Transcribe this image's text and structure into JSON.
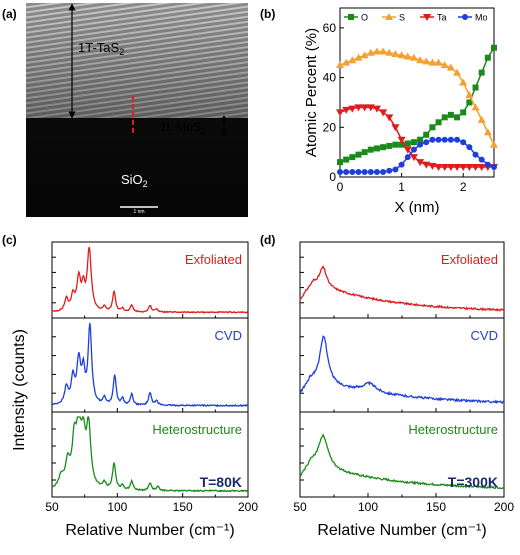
{
  "panel_labels": {
    "a": "(a)",
    "b": "(b)",
    "c": "(c)",
    "d": "(d)"
  },
  "tem": {
    "label_top": "1T-TaS",
    "label_top_sub": "2",
    "label_mid": "1L MoS",
    "label_mid_sub": "2",
    "label_bottom": "SiO",
    "label_bottom_sub": "2",
    "scalebar": "1 nm"
  },
  "colors": {
    "red": "#e31a1c",
    "blue": "#1f3fdc",
    "green": "#1a8a1a",
    "orange": "#f5a030",
    "navy": "#1a2a6e"
  },
  "chart_data": [
    {
      "id": "b",
      "type": "line",
      "ylabel": "Atomic Percent (%)",
      "xlabel": "X (nm)",
      "xlim": [
        0,
        2.5
      ],
      "ylim": [
        0,
        68
      ],
      "xticks": [
        0,
        1,
        2
      ],
      "yticks": [
        0,
        20,
        40,
        60
      ],
      "x": [
        0.0,
        0.1,
        0.2,
        0.3,
        0.4,
        0.5,
        0.6,
        0.7,
        0.8,
        0.9,
        1.0,
        1.1,
        1.2,
        1.3,
        1.4,
        1.5,
        1.6,
        1.7,
        1.8,
        1.9,
        2.0,
        2.1,
        2.2,
        2.3,
        2.4,
        2.5
      ],
      "series": [
        {
          "name": "O",
          "marker": "square",
          "color": "#1a8a1a",
          "values": [
            6,
            7,
            8,
            9,
            10,
            11,
            11.5,
            12,
            12.5,
            13,
            13,
            13.5,
            14,
            15,
            17,
            20,
            22,
            24,
            25,
            24,
            26,
            30,
            36,
            42,
            48,
            52
          ]
        },
        {
          "name": "S",
          "marker": "triangle-up",
          "color": "#f5a030",
          "values": [
            45,
            46,
            47,
            48,
            49,
            50,
            50.5,
            50.5,
            50,
            49.5,
            49,
            48.5,
            48,
            47,
            46.5,
            46,
            46,
            45,
            44,
            42,
            38,
            33,
            28,
            23,
            18,
            13
          ]
        },
        {
          "name": "Ta",
          "marker": "triangle-down",
          "color": "#e31a1c",
          "values": [
            26,
            27,
            27.5,
            28,
            28,
            28,
            27.5,
            26,
            24,
            20,
            15,
            11,
            8,
            6,
            5,
            4.5,
            4,
            4,
            4,
            4,
            4,
            4,
            4,
            4,
            4,
            4
          ]
        },
        {
          "name": "Mo",
          "marker": "circle",
          "color": "#1f3fdc",
          "values": [
            2,
            2,
            2,
            2,
            2,
            2,
            2,
            2,
            2.5,
            3,
            5,
            8,
            11,
            13,
            14,
            15,
            15,
            15,
            15,
            15,
            14,
            12,
            9,
            7,
            5,
            4
          ]
        }
      ]
    },
    {
      "id": "c",
      "type": "line",
      "xlabel": "Relative Number (cm⁻¹)",
      "ylabel": "Intensity (counts)",
      "xlim": [
        50,
        200
      ],
      "xticks": [
        50,
        100,
        150,
        200
      ],
      "annotation": "T=80K",
      "series": [
        {
          "name": "Exfoliated",
          "color": "#e31a1c"
        },
        {
          "name": "CVD",
          "color": "#1f3fdc"
        },
        {
          "name": "Heterostructure",
          "color": "#1a8a1a"
        }
      ]
    },
    {
      "id": "d",
      "type": "line",
      "xlabel": "Relative Number (cm⁻¹)",
      "xlim": [
        50,
        200
      ],
      "xticks": [
        50,
        100,
        150,
        200
      ],
      "annotation": "T=300K",
      "series": [
        {
          "name": "Exfoliated",
          "color": "#e31a1c"
        },
        {
          "name": "CVD",
          "color": "#1f3fdc"
        },
        {
          "name": "Heterostructure",
          "color": "#1a8a1a"
        }
      ]
    }
  ]
}
